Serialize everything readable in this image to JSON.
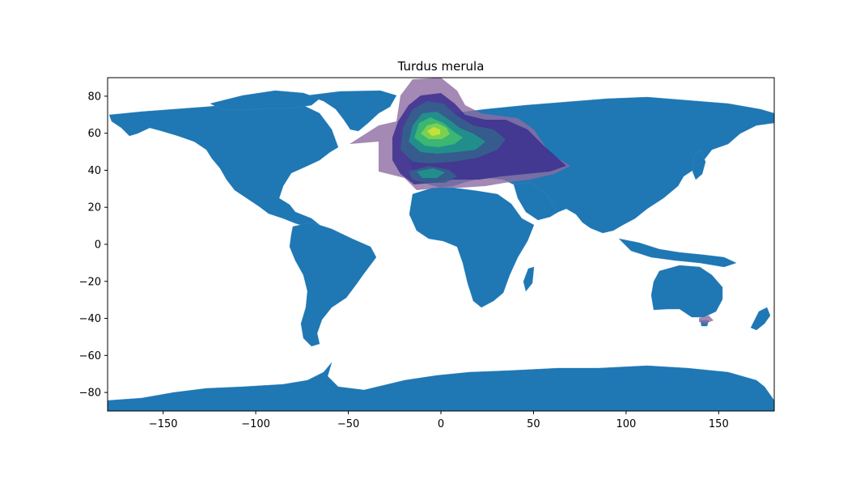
{
  "chart_data": {
    "type": "map-density-contour",
    "title": "Turdus merula",
    "xlabel": "",
    "ylabel": "",
    "xlim": [
      -180,
      180
    ],
    "ylim": [
      -90,
      90
    ],
    "xticks": [
      -150,
      -100,
      -50,
      0,
      50,
      100,
      150
    ],
    "yticks": [
      -80,
      -60,
      -40,
      -20,
      0,
      20,
      40,
      60,
      80
    ],
    "xtick_labels": [
      "−150",
      "−100",
      "−50",
      "0",
      "50",
      "100",
      "150"
    ],
    "ytick_labels": [
      "−80",
      "−60",
      "−40",
      "−20",
      "0",
      "20",
      "40",
      "60",
      "80"
    ],
    "grid": false,
    "land_color": "#1f77b4",
    "colormap": "viridis",
    "density_region": "Europe, western Asia and North Africa; small patch in southeastern Australia",
    "peak_location": {
      "lon": -5,
      "lat": 60
    }
  }
}
